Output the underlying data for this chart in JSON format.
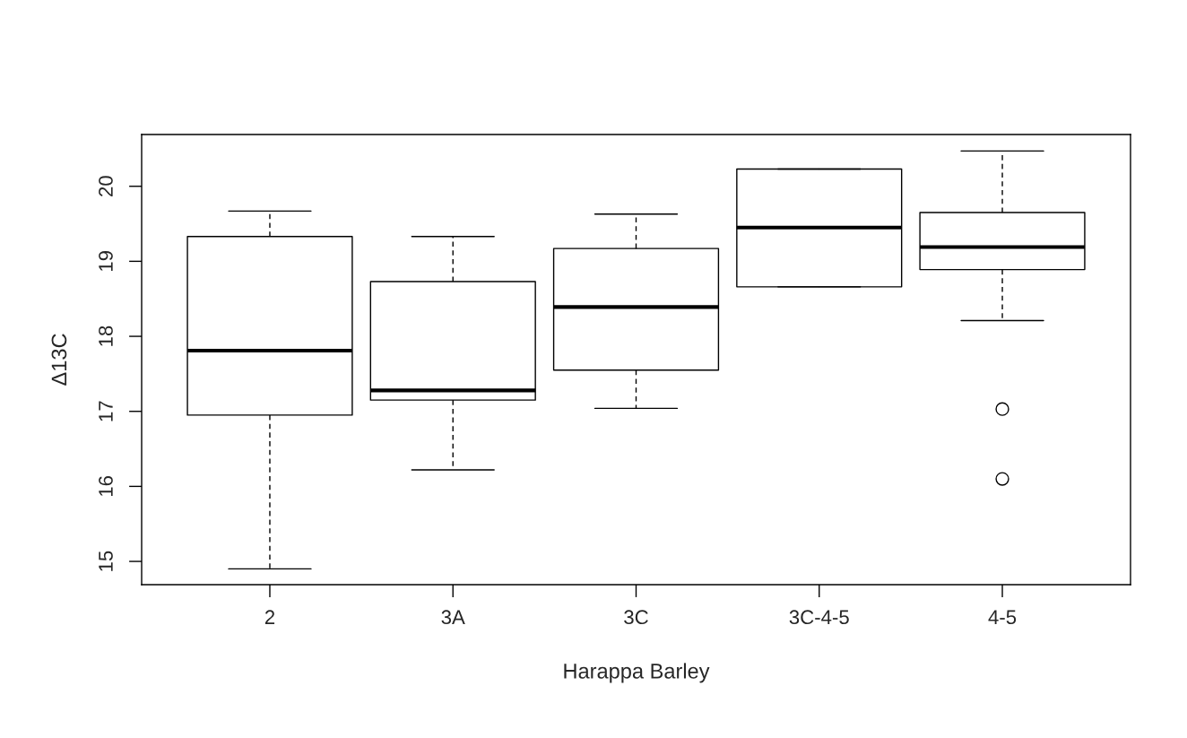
{
  "chart_data": {
    "type": "box",
    "xlabel": "Harappa Barley",
    "ylabel": "Δ13C",
    "categories": [
      "2",
      "3A",
      "3C",
      "3C-4-5",
      "4-5"
    ],
    "boxes": [
      {
        "low": 14.9,
        "q1": 16.95,
        "median": 17.81,
        "q3": 19.33,
        "high": 19.67
      },
      {
        "low": 16.22,
        "q1": 17.15,
        "median": 17.28,
        "q3": 18.73,
        "high": 19.33
      },
      {
        "low": 17.04,
        "q1": 17.55,
        "median": 18.39,
        "q3": 19.17,
        "high": 19.63
      },
      {
        "low": 18.66,
        "q1": 18.66,
        "median": 19.45,
        "q3": 20.23,
        "high": 20.23
      },
      {
        "low": 18.21,
        "q1": 18.89,
        "median": 19.19,
        "q3": 19.65,
        "high": 20.47,
        "outliers": [
          17.03,
          16.1
        ]
      }
    ],
    "ylim": [
      14.69,
      20.69
    ],
    "yticks": [
      15,
      16,
      17,
      18,
      19,
      20
    ],
    "grid": false,
    "legend": false
  }
}
